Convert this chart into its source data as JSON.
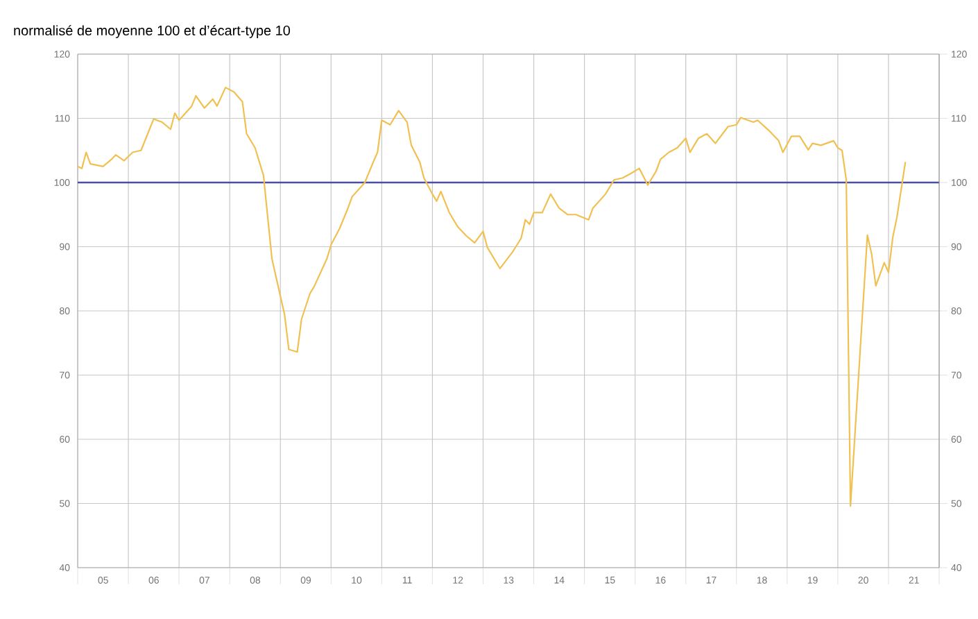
{
  "chart_data": {
    "type": "line",
    "ylabel": "normalisé de moyenne 100 et d’écart-type 10",
    "x": [
      "2005-01",
      "2005-02",
      "2005-03",
      "2005-04",
      "2005-07",
      "2005-09",
      "2005-10",
      "2005-12",
      "2006-02",
      "2006-04",
      "2006-07",
      "2006-09",
      "2006-11",
      "2006-12",
      "2007-01",
      "2007-04",
      "2007-05",
      "2007-07",
      "2007-09",
      "2007-10",
      "2007-12",
      "2008-02",
      "2008-04",
      "2008-05",
      "2008-07",
      "2008-09",
      "2008-10",
      "2008-11",
      "2009-01",
      "2009-02",
      "2009-03",
      "2009-05",
      "2009-06",
      "2009-08",
      "2009-09",
      "2009-12",
      "2010-01",
      "2010-03",
      "2010-05",
      "2010-06",
      "2010-09",
      "2010-11",
      "2010-12",
      "2011-01",
      "2011-03",
      "2011-05",
      "2011-07",
      "2011-08",
      "2011-10",
      "2011-11",
      "2012-01",
      "2012-02",
      "2012-03",
      "2012-05",
      "2012-07",
      "2012-09",
      "2012-11",
      "2013-01",
      "2013-02",
      "2013-05",
      "2013-08",
      "2013-10",
      "2013-11",
      "2013-12",
      "2014-01",
      "2014-03",
      "2014-05",
      "2014-07",
      "2014-09",
      "2014-11",
      "2015-02",
      "2015-03",
      "2015-06",
      "2015-08",
      "2015-10",
      "2015-12",
      "2016-02",
      "2016-04",
      "2016-06",
      "2016-07",
      "2016-09",
      "2016-11",
      "2017-01",
      "2017-02",
      "2017-04",
      "2017-06",
      "2017-08",
      "2017-11",
      "2018-01",
      "2018-02",
      "2018-05",
      "2018-06",
      "2018-09",
      "2018-11",
      "2018-12",
      "2019-02",
      "2019-04",
      "2019-06",
      "2019-07",
      "2019-09",
      "2019-12",
      "2020-01",
      "2020-02",
      "2020-03",
      "2020-04",
      "2020-08",
      "2020-09",
      "2020-10",
      "2020-12",
      "2021-01",
      "2021-02",
      "2021-03",
      "2021-05"
    ],
    "series": [
      {
        "color": "#f0c050",
        "values": [
          102.5,
          102.2,
          104.7,
          102.9,
          102.5,
          103.6,
          104.3,
          103.4,
          104.7,
          105,
          109.9,
          109.4,
          108.3,
          110.8,
          109.7,
          111.9,
          113.5,
          111.6,
          113,
          111.9,
          114.8,
          114.1,
          112.6,
          107.6,
          105.4,
          101.1,
          94.6,
          88.1,
          82.3,
          79.4,
          74,
          73.6,
          78.7,
          82.7,
          83.8,
          88.1,
          90.3,
          92.8,
          96,
          97.8,
          100,
          103.2,
          104.7,
          109.7,
          109,
          111.2,
          109.4,
          105.8,
          103.2,
          100.7,
          98.2,
          97.1,
          98.6,
          95.3,
          93.1,
          91.7,
          90.6,
          92.4,
          89.9,
          86.6,
          89.2,
          91.3,
          94.2,
          93.5,
          95.3,
          95.3,
          98.2,
          96,
          95,
          95,
          94.2,
          96,
          98.2,
          100.4,
          100.7,
          101.4,
          102.2,
          99.6,
          101.8,
          103.6,
          104.7,
          105.4,
          106.9,
          104.7,
          106.9,
          107.6,
          106.1,
          108.7,
          109,
          110.1,
          109.4,
          109.7,
          107.9,
          106.5,
          104.7,
          107.2,
          107.2,
          105.1,
          106.1,
          105.8,
          106.5,
          105.4,
          105,
          100.4,
          49.6,
          91.8,
          88.9,
          83.9,
          87.5,
          86,
          91.4,
          94.6,
          103.2
        ]
      }
    ],
    "xlim": [
      "2005-01",
      "2022-01"
    ],
    "xticks": [
      {
        "value": "2005-01",
        "label": null
      },
      {
        "value": "2006-01",
        "label": null
      },
      {
        "value": "2007-01",
        "label": null
      },
      {
        "value": "2008-01",
        "label": null
      },
      {
        "value": "2009-01",
        "label": null
      },
      {
        "value": "2010-01",
        "label": null
      },
      {
        "value": "2011-01",
        "label": null
      },
      {
        "value": "2012-01",
        "label": null
      },
      {
        "value": "2013-01",
        "label": null
      },
      {
        "value": "2014-01",
        "label": null
      },
      {
        "value": "2015-01",
        "label": null
      },
      {
        "value": "2016-01",
        "label": null
      },
      {
        "value": "2017-01",
        "label": null
      },
      {
        "value": "2018-01",
        "label": null
      },
      {
        "value": "2019-01",
        "label": null
      },
      {
        "value": "2020-01",
        "label": null
      },
      {
        "value": "2021-01",
        "label": null
      },
      {
        "value": "2022-01",
        "label": null
      },
      {
        "value": "2005-07-02",
        "label": "05"
      },
      {
        "value": "2006-07-02",
        "label": "06"
      },
      {
        "value": "2007-07-02",
        "label": "07"
      },
      {
        "value": "2008-07-02",
        "label": "08"
      },
      {
        "value": "2009-07-02",
        "label": "09"
      },
      {
        "value": "2010-07-02",
        "label": "10"
      },
      {
        "value": "2011-07-02",
        "label": "11"
      },
      {
        "value": "2012-07-02",
        "label": "12"
      },
      {
        "value": "2013-07-02",
        "label": "13"
      },
      {
        "value": "2014-07-02",
        "label": "14"
      },
      {
        "value": "2015-07-02",
        "label": "15"
      },
      {
        "value": "2016-07-02",
        "label": "16"
      },
      {
        "value": "2017-07-02",
        "label": "17"
      },
      {
        "value": "2018-07-02",
        "label": "18"
      },
      {
        "value": "2019-07-02",
        "label": "19"
      },
      {
        "value": "2020-07-02",
        "label": "20"
      },
      {
        "value": "2021-07-02",
        "label": "21"
      }
    ],
    "ylim": [
      40,
      120
    ],
    "yticks": [
      40,
      50,
      60,
      70,
      80,
      90,
      100,
      110,
      120
    ],
    "y2lim": [
      40,
      120
    ],
    "y2ticks": [
      40,
      50,
      60,
      70,
      80,
      90,
      100,
      110,
      120
    ],
    "ref_lines": [
      {
        "axis": "y",
        "value": 100,
        "color": "#4b4fa0"
      }
    ],
    "grid": true,
    "line_style": "solid"
  }
}
